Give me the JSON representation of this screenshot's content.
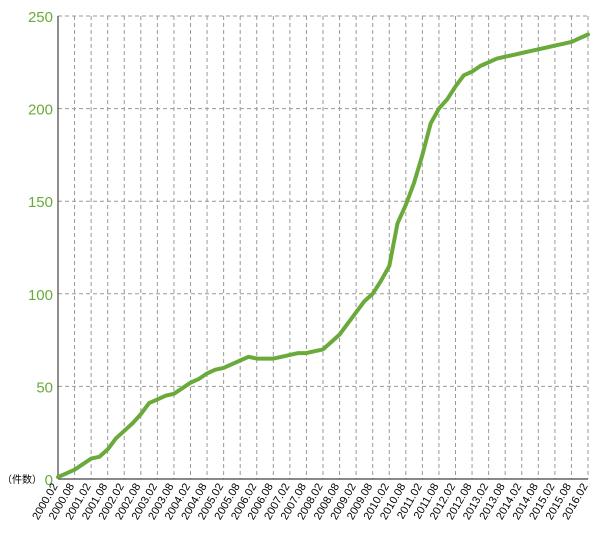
{
  "chart_data": {
    "type": "line",
    "title": "",
    "xlabel": "",
    "ylabel": "",
    "unit_label": "（件数）",
    "ylim": [
      0,
      250
    ],
    "yticks": [
      0,
      50,
      100,
      150,
      200,
      250
    ],
    "grid": true,
    "xlim": [
      "2000.02",
      "2016.02"
    ],
    "x_ticks": [
      "2000.02",
      "2000.08",
      "2001.02",
      "2001.08",
      "2002.02",
      "2002.08",
      "2003.02",
      "2003.08",
      "2004.02",
      "2004.08",
      "2005.02",
      "2005.08",
      "2006.02",
      "2006.08",
      "2007.02",
      "2007.08",
      "2008.02",
      "2008.08",
      "2009.02",
      "2009.08",
      "2010.02",
      "2010.08",
      "2011.02",
      "2011.08",
      "2012.02",
      "2012.08",
      "2013.02",
      "2013.08",
      "2014.02",
      "2014.08",
      "2015.02",
      "2015.08",
      "2016.02"
    ],
    "line_color": "#6aaa3a",
    "axis_color": "#6aaa3a",
    "series": [
      {
        "x": [
          "2000.02",
          "2000.05",
          "2000.08",
          "2000.11",
          "2001.02",
          "2001.05",
          "2001.08",
          "2001.11",
          "2002.02",
          "2002.05",
          "2002.08",
          "2002.11",
          "2003.02",
          "2003.05",
          "2003.08",
          "2003.11",
          "2004.02",
          "2004.05",
          "2004.08",
          "2004.11",
          "2005.02",
          "2005.05",
          "2005.08",
          "2005.11",
          "2006.02",
          "2006.05",
          "2006.08",
          "2006.11",
          "2007.02",
          "2007.05",
          "2007.08",
          "2007.11",
          "2008.02",
          "2008.05",
          "2008.08",
          "2008.11",
          "2009.02",
          "2009.05",
          "2009.08",
          "2009.11",
          "2010.02",
          "2010.05",
          "2010.08",
          "2010.11",
          "2011.02",
          "2011.05",
          "2011.08",
          "2011.11",
          "2012.02",
          "2012.05",
          "2012.08",
          "2012.11",
          "2013.02",
          "2013.05",
          "2013.08",
          "2013.11",
          "2014.02",
          "2014.05",
          "2014.08",
          "2014.11",
          "2015.02",
          "2015.05",
          "2015.08",
          "2015.11",
          "2016.02"
        ],
        "values": [
          1,
          3,
          5,
          8,
          11,
          12,
          16,
          22,
          26,
          30,
          35,
          41,
          43,
          45,
          46,
          49,
          52,
          54,
          57,
          59,
          60,
          62,
          64,
          66,
          65,
          65,
          65,
          66,
          67,
          68,
          68,
          69,
          70,
          74,
          78,
          84,
          90,
          96,
          100,
          107,
          115,
          138,
          148,
          160,
          175,
          192,
          200,
          205,
          212,
          218,
          220,
          223,
          225,
          227,
          228,
          229,
          230,
          231,
          232,
          233,
          234,
          235,
          236,
          238,
          240
        ]
      }
    ]
  }
}
